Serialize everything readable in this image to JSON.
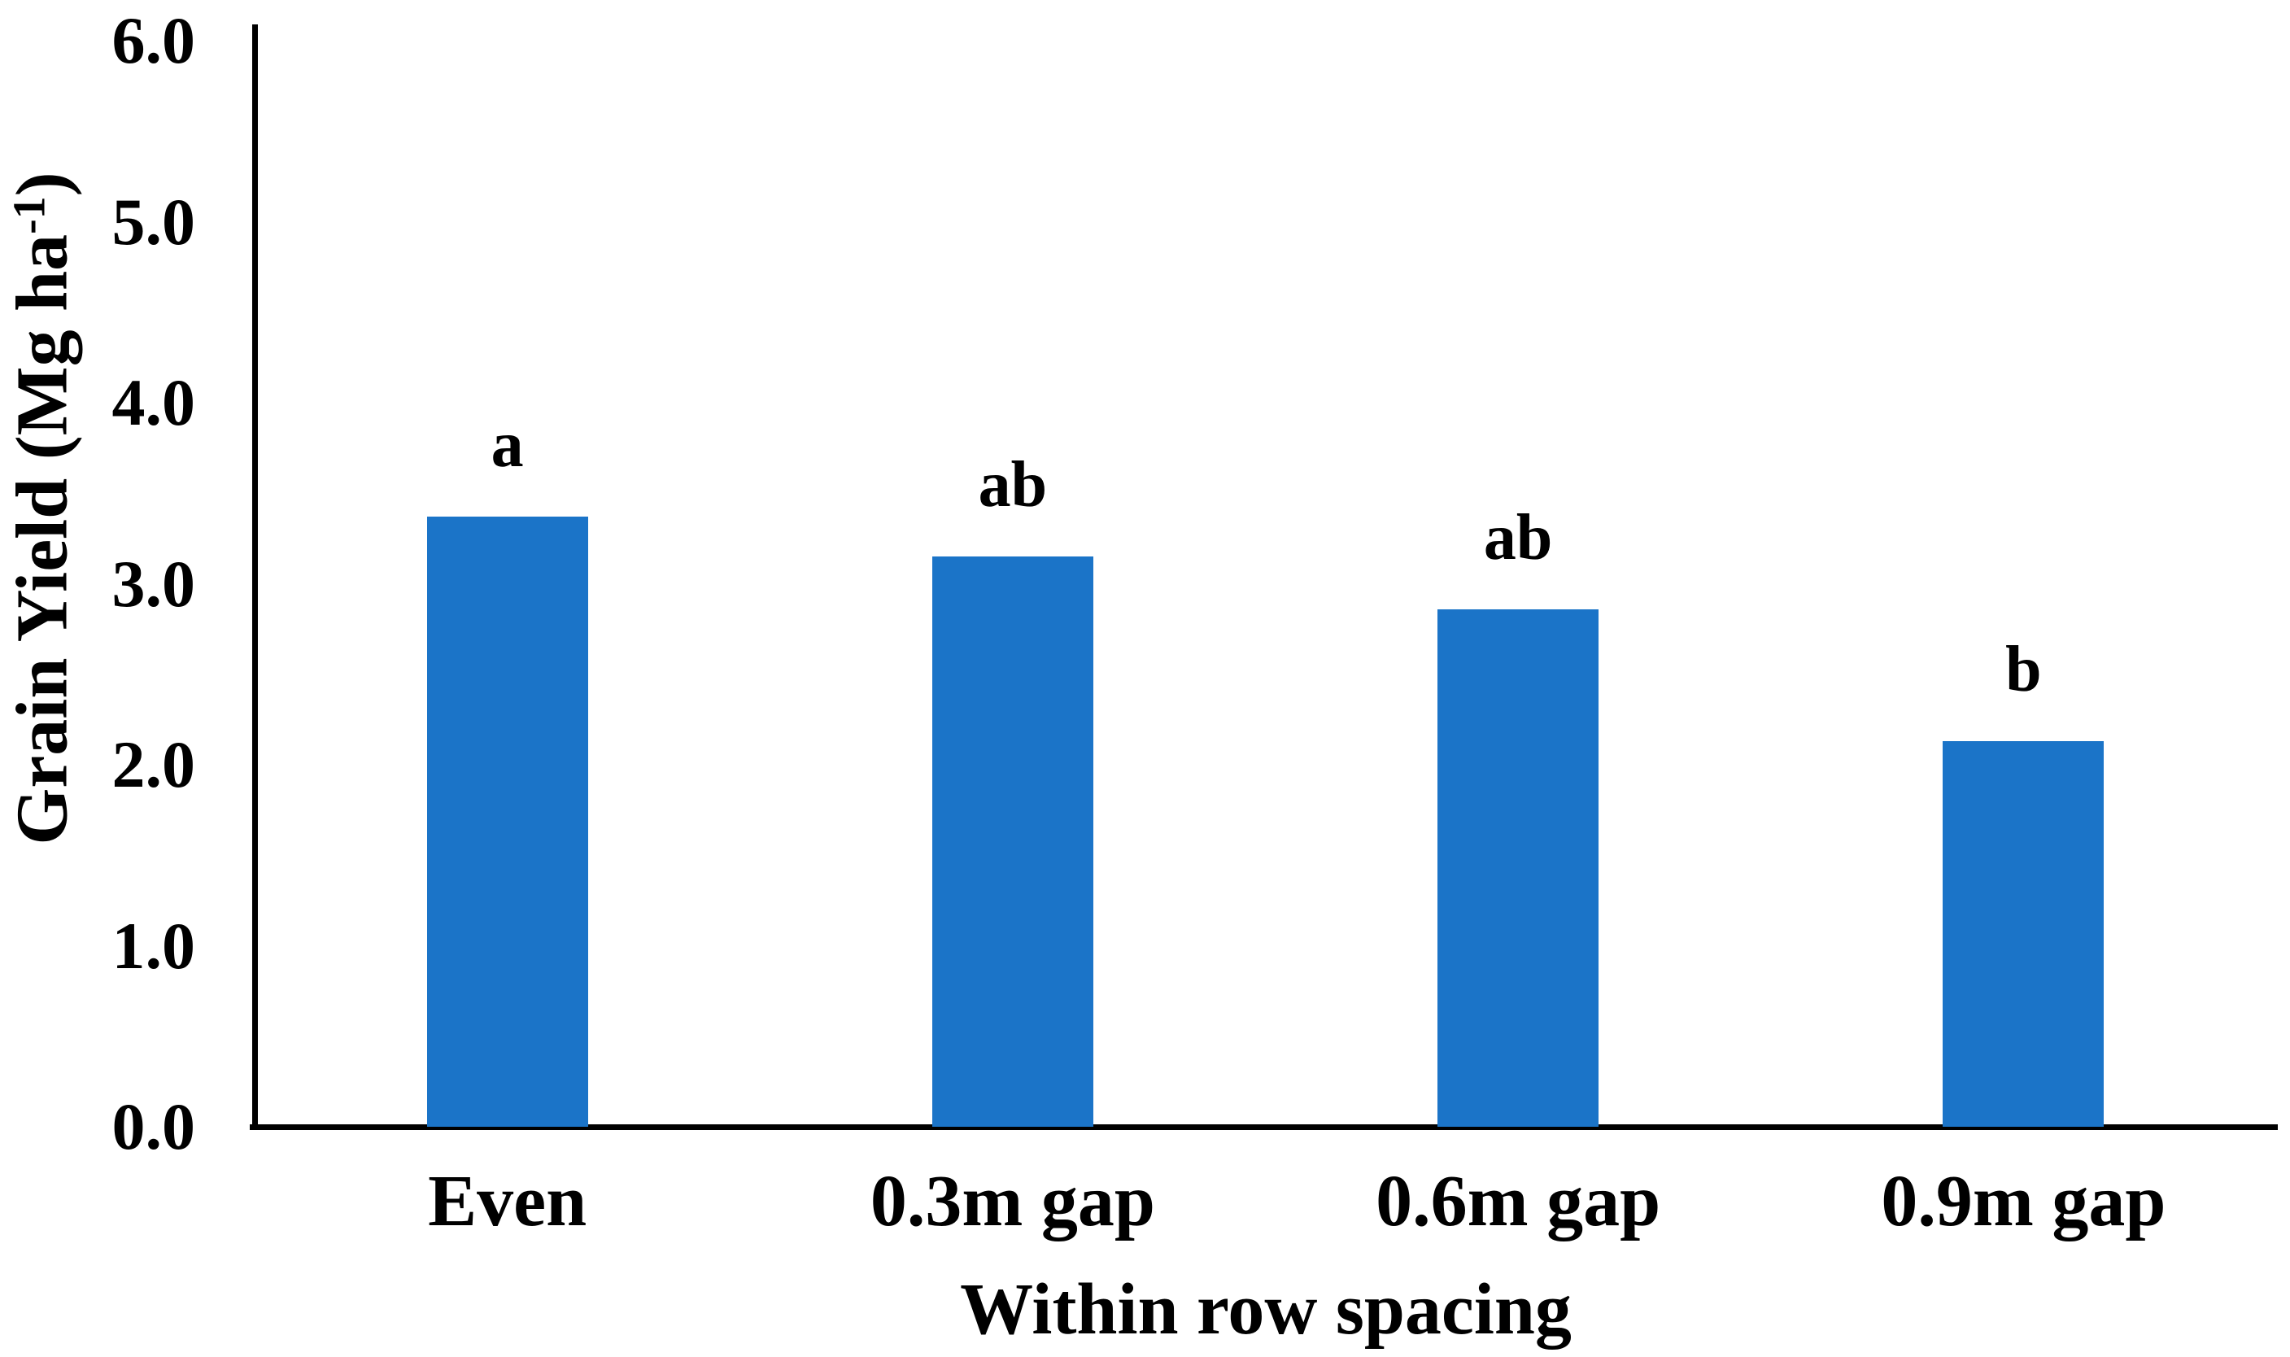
{
  "chart_data": {
    "type": "bar",
    "categories": [
      "Even",
      "0.3m gap",
      "0.6m gap",
      "0.9m gap"
    ],
    "values": [
      3.37,
      3.15,
      2.86,
      2.13
    ],
    "significance_letters": [
      "a",
      "ab",
      "ab",
      "b"
    ],
    "xlabel": "Within row spacing",
    "ylabel": "Grain Yield (Mg ha-1)",
    "ylabel_parts": {
      "prefix": "Grain Yield (Mg ha",
      "superscript": "-1",
      "suffix": ")"
    },
    "ylim": [
      0.0,
      6.0
    ],
    "ytick_values": [
      0,
      1,
      2,
      3,
      4,
      5,
      6
    ],
    "ytick_labels": [
      "0.0",
      "1.0",
      "2.0",
      "3.0",
      "4.0",
      "5.0",
      "6.0"
    ],
    "grid": false,
    "legend": "none",
    "bar_color": "#1B74C8",
    "axis_color": "#000000"
  }
}
